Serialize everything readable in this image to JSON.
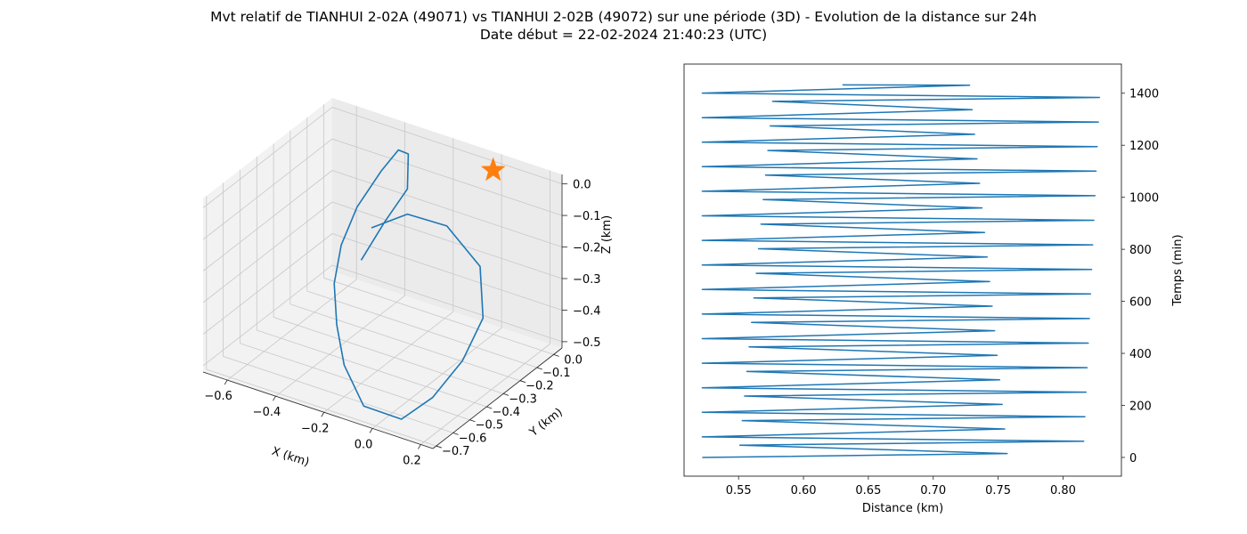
{
  "chart_data": [
    {
      "type": "line3d",
      "title": "Mvt relatif de TIANHUI 2-02A (49071) vs TIANHUI 2-02B (49072) sur une période (3D) - Evolution de la distance sur 24h",
      "subtitle": "Date début = 22-02-2024 21:40:23 (UTC)",
      "xlabel": "X (km)",
      "ylabel": "Y (km)",
      "zlabel": "Z (km)",
      "xlim": [
        -0.7,
        0.25
      ],
      "ylim": [
        -0.72,
        0.05
      ],
      "zlim": [
        -0.52,
        0.03
      ],
      "xticks": [
        -0.6,
        -0.4,
        -0.2,
        0.0,
        0.2
      ],
      "xtick_labels": [
        "−0.6",
        "−0.4",
        "−0.2",
        "0.0",
        "0.2"
      ],
      "yticks": [
        -0.7,
        -0.6,
        -0.5,
        -0.4,
        -0.3,
        -0.2,
        -0.1,
        0.0
      ],
      "ytick_labels": [
        "−0.7",
        "−0.6",
        "−0.5",
        "−0.4",
        "−0.3",
        "−0.2",
        "−0.1",
        "0.0"
      ],
      "zticks": [
        -0.5,
        -0.4,
        -0.3,
        -0.2,
        -0.1,
        0.0
      ],
      "ztick_labels": [
        "−0.5",
        "−0.4",
        "−0.3",
        "−0.2",
        "−0.1",
        "0.0"
      ],
      "grid": true,
      "series": [
        {
          "color": "#1f77b4",
          "points": [
            [
              -0.4,
              -0.21,
              -0.3
            ],
            [
              -0.38,
              -0.1,
              -0.22
            ],
            [
              -0.32,
              -0.05,
              -0.12
            ],
            [
              -0.33,
              -0.03,
              -0.02
            ],
            [
              -0.35,
              -0.06,
              0.0
            ],
            [
              -0.38,
              -0.12,
              -0.05
            ],
            [
              -0.41,
              -0.22,
              -0.13
            ],
            [
              -0.42,
              -0.3,
              -0.22
            ],
            [
              -0.38,
              -0.4,
              -0.29
            ],
            [
              -0.3,
              -0.5,
              -0.36
            ],
            [
              -0.2,
              -0.6,
              -0.42
            ],
            [
              -0.05,
              -0.7,
              -0.47
            ],
            [
              0.12,
              -0.72,
              -0.46
            ],
            [
              0.2,
              -0.65,
              -0.4
            ],
            [
              0.22,
              -0.5,
              -0.34
            ],
            [
              0.18,
              -0.32,
              -0.29
            ],
            [
              0.05,
              -0.15,
              -0.23
            ],
            [
              -0.15,
              -0.06,
              -0.19
            ],
            [
              -0.32,
              -0.05,
              -0.2
            ],
            [
              -0.42,
              -0.12,
              -0.24
            ]
          ]
        }
      ],
      "marker": {
        "shape": "star",
        "color": "#ff7f0e",
        "point": [
          0.0,
          0.0,
          0.0
        ]
      }
    },
    {
      "type": "line",
      "xlabel": "Distance (km)",
      "ylabel": "Temps (min)",
      "xlim": [
        0.508,
        0.845
      ],
      "ylim": [
        -72,
        1512
      ],
      "xticks": [
        0.55,
        0.6,
        0.65,
        0.7,
        0.75,
        0.8
      ],
      "xtick_labels": [
        "0.55",
        "0.60",
        "0.65",
        "0.70",
        "0.75",
        "0.80"
      ],
      "yticks": [
        0,
        200,
        400,
        600,
        800,
        1000,
        1200,
        1400
      ],
      "ytick_labels": [
        "0",
        "200",
        "400",
        "600",
        "800",
        "1000",
        "1200",
        "1400"
      ],
      "y_axis_side": "right",
      "grid": false,
      "series": [
        {
          "color": "#1f77b4",
          "pattern": {
            "cycle_min": 94.4,
            "phase_offsets_min": [
              0,
              15,
              47,
              62,
              79
            ],
            "vertex_distances_first": [
              0.522,
              0.757,
              0.551,
              0.816,
              0.522
            ],
            "vertex_distances_last": [
              0.522,
              0.728,
              0.578,
              0.829,
              0.522
            ],
            "end": {
              "t": 1432,
              "d": 0.63
            }
          }
        }
      ]
    }
  ]
}
